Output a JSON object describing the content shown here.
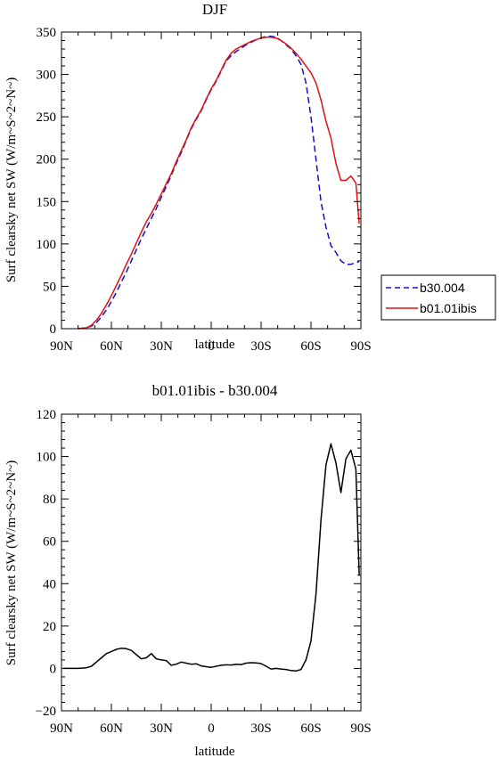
{
  "chart_data": [
    {
      "type": "line",
      "title": "DJF",
      "xlabel": "latitude",
      "ylabel": "Surf clearsky net SW (W/m~S~2~N~)",
      "xlim": [
        90,
        -90
      ],
      "ylim": [
        0,
        350
      ],
      "xticks": [
        90,
        60,
        30,
        0,
        -30,
        -60,
        -90
      ],
      "xtick_labels": [
        "90N",
        "60N",
        "30N",
        "0",
        "30S",
        "60S",
        "90S"
      ],
      "yticks": [
        0,
        50,
        100,
        150,
        200,
        250,
        300,
        350
      ],
      "ytick_labels": [
        "0",
        "50",
        "100",
        "150",
        "200",
        "250",
        "300",
        "350"
      ],
      "legend": "right",
      "series": [
        {
          "name": "b30.004",
          "color": "#1010c8",
          "dash": "dashed",
          "x": [
            80,
            75,
            72,
            69,
            66,
            63,
            60,
            57,
            54,
            51,
            48,
            45,
            42,
            39,
            36,
            33,
            30,
            27,
            24,
            21,
            18,
            15,
            12,
            9,
            6,
            3,
            0,
            -3,
            -6,
            -9,
            -12,
            -15,
            -18,
            -21,
            -24,
            -27,
            -30,
            -33,
            -36,
            -39,
            -42,
            -45,
            -48,
            -51,
            -54,
            -57,
            -60,
            -63,
            -66,
            -69,
            -72,
            -75,
            -78,
            -81,
            -84,
            -87,
            -89
          ],
          "y": [
            0,
            1,
            3,
            7,
            14,
            22,
            32,
            43,
            55,
            67,
            80,
            93,
            106,
            118,
            130,
            142,
            155,
            168,
            181,
            195,
            208,
            222,
            236,
            247,
            257,
            270,
            282,
            292,
            304,
            316,
            322,
            327,
            331,
            335,
            338,
            341,
            343,
            345,
            345,
            344,
            340,
            335,
            330,
            322,
            312,
            290,
            250,
            200,
            150,
            120,
            98,
            90,
            80,
            76,
            76,
            78,
            79
          ]
        },
        {
          "name": "b01.01ibis",
          "color": "#e01010",
          "dash": "solid",
          "x": [
            80,
            75,
            72,
            69,
            66,
            63,
            60,
            57,
            54,
            51,
            48,
            45,
            42,
            39,
            36,
            33,
            30,
            27,
            24,
            21,
            18,
            15,
            12,
            9,
            6,
            3,
            0,
            -3,
            -6,
            -9,
            -12,
            -15,
            -18,
            -21,
            -24,
            -27,
            -30,
            -33,
            -36,
            -39,
            -42,
            -45,
            -48,
            -51,
            -54,
            -57,
            -60,
            -63,
            -66,
            -69,
            -72,
            -75,
            -78,
            -81,
            -84,
            -87,
            -89
          ],
          "y": [
            0,
            1,
            4,
            10,
            18,
            28,
            39,
            51,
            63,
            76,
            88,
            101,
            114,
            126,
            136,
            147,
            159,
            171,
            183,
            197,
            210,
            223,
            237,
            248,
            258,
            271,
            283,
            293,
            305,
            317,
            325,
            330,
            333,
            336,
            339,
            341,
            343,
            344,
            344,
            343,
            340,
            336,
            331,
            325,
            318,
            310,
            302,
            290,
            270,
            245,
            225,
            195,
            175,
            175,
            180,
            172,
            124
          ]
        }
      ]
    },
    {
      "type": "line",
      "title": "b01.01ibis - b30.004",
      "xlabel": "latitude",
      "ylabel": "Surf clearsky net SW (W/m~S~2~N~)",
      "xlim": [
        90,
        -90
      ],
      "ylim": [
        -20,
        120
      ],
      "xticks": [
        90,
        60,
        30,
        0,
        -30,
        -60,
        -90
      ],
      "xtick_labels": [
        "90N",
        "60N",
        "30N",
        "0",
        "30S",
        "60S",
        "90S"
      ],
      "yticks": [
        -20,
        0,
        20,
        40,
        60,
        80,
        100,
        120
      ],
      "ytick_labels": [
        "−20",
        "0",
        "20",
        "40",
        "60",
        "80",
        "100",
        "120"
      ],
      "series": [
        {
          "color": "#000000",
          "dash": "solid",
          "x": [
            89,
            80,
            75,
            72,
            69,
            66,
            63,
            60,
            57,
            54,
            51,
            48,
            45,
            42,
            39,
            36,
            33,
            30,
            27,
            24,
            21,
            18,
            15,
            12,
            9,
            6,
            3,
            0,
            -3,
            -6,
            -9,
            -12,
            -15,
            -18,
            -21,
            -24,
            -27,
            -30,
            -33,
            -36,
            -39,
            -42,
            -45,
            -48,
            -51,
            -54,
            -57,
            -60,
            -63,
            -66,
            -69,
            -72,
            -75,
            -78,
            -81,
            -84,
            -87,
            -89
          ],
          "y": [
            0,
            0,
            0.3,
            1,
            3,
            5,
            7,
            8,
            9,
            9.5,
            9.3,
            8.5,
            6.5,
            4.5,
            5,
            7,
            4.5,
            4,
            3.7,
            1.5,
            2,
            3,
            2.5,
            2,
            2.2,
            1.2,
            0.8,
            0.5,
            1,
            1.5,
            1.7,
            1.6,
            2,
            1.8,
            2.5,
            2.7,
            2.6,
            2.3,
            1,
            -0.3,
            0,
            -0.3,
            -0.5,
            -1,
            -1.2,
            -0.5,
            4,
            13,
            35,
            70,
            96,
            106,
            97,
            83,
            99,
            103,
            94,
            44
          ]
        }
      ]
    }
  ]
}
